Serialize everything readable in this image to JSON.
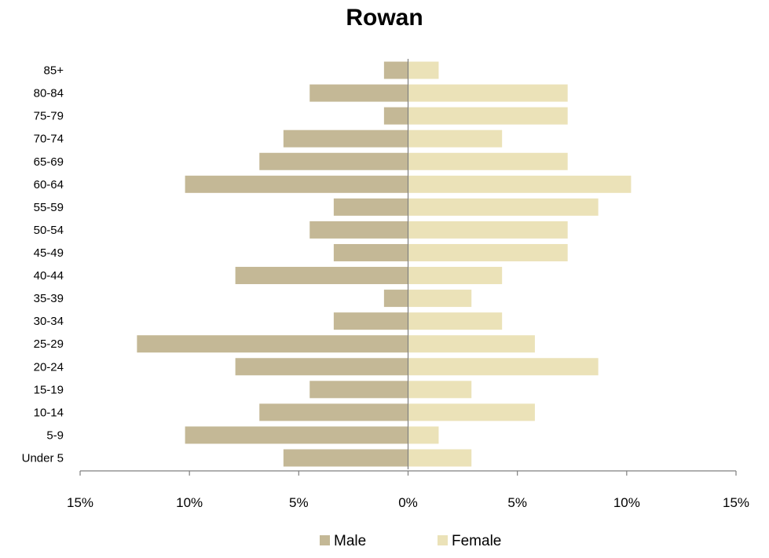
{
  "chart_data": {
    "type": "bar",
    "orientation": "horizontal",
    "subtype": "population-pyramid",
    "title": "Rowan",
    "xlabel": "",
    "ylabel": "",
    "categories": [
      "Under 5",
      "5-9",
      "10-14",
      "15-19",
      "20-24",
      "25-29",
      "30-34",
      "35-39",
      "40-44",
      "45-49",
      "50-54",
      "55-59",
      "60-64",
      "65-69",
      "70-74",
      "75-79",
      "80-84",
      "85+"
    ],
    "series": [
      {
        "name": "Male",
        "color": "#c4b896",
        "direction": "left",
        "values": [
          5.7,
          10.2,
          6.8,
          4.5,
          7.9,
          12.4,
          3.4,
          1.1,
          7.9,
          3.4,
          4.5,
          3.4,
          10.2,
          6.8,
          5.7,
          1.1,
          4.5,
          1.1
        ]
      },
      {
        "name": "Female",
        "color": "#ebe2b8",
        "direction": "right",
        "values": [
          2.9,
          1.4,
          5.8,
          2.9,
          8.7,
          5.8,
          4.3,
          2.9,
          4.3,
          7.3,
          7.3,
          8.7,
          10.2,
          7.3,
          4.3,
          7.3,
          7.3,
          1.4
        ]
      }
    ],
    "xlim": [
      -15,
      15
    ],
    "xticks": [
      -15,
      -10,
      -5,
      0,
      5,
      10,
      15
    ],
    "xtick_labels": [
      "15%",
      "10%",
      "5%",
      "0%",
      "5%",
      "10%",
      "15%"
    ],
    "unit": "%",
    "grid": false,
    "legend": {
      "position": "bottom",
      "entries": [
        "Male",
        "Female"
      ]
    }
  }
}
